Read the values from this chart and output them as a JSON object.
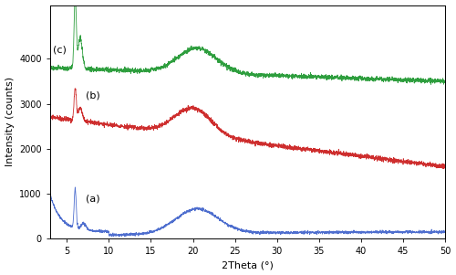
{
  "title": "",
  "xlabel": "2Theta (°)",
  "ylabel": "Intensity (counts)",
  "xlim": [
    3,
    50
  ],
  "ylim": [
    0,
    5200
  ],
  "yticks": [
    0,
    1000,
    2000,
    3000,
    4000
  ],
  "xticks": [
    5,
    10,
    15,
    20,
    25,
    30,
    35,
    40,
    45,
    50
  ],
  "color_a": "#4466cc",
  "color_b": "#cc2222",
  "color_c": "#229933",
  "label_a": "(a)",
  "label_b": "(b)",
  "label_c": "(c)",
  "figsize": [
    5.0,
    3.01
  ],
  "dpi": 100
}
